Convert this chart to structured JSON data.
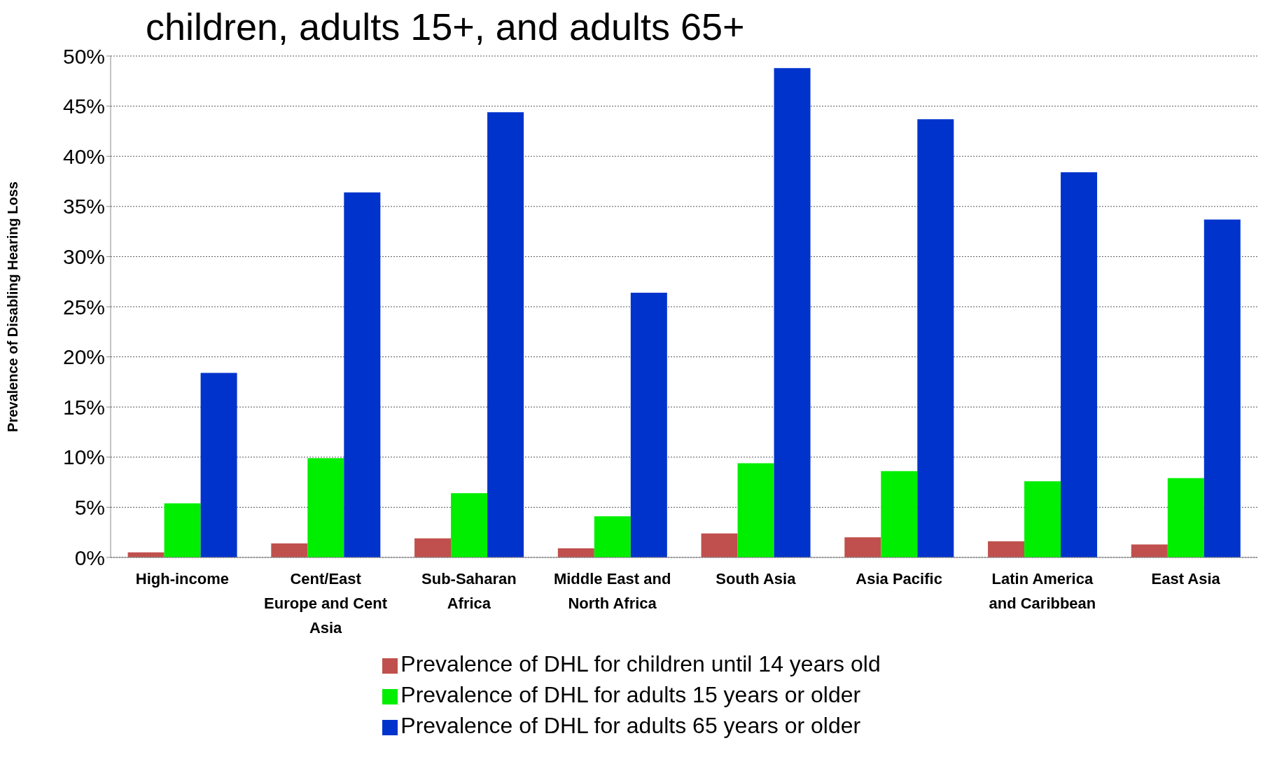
{
  "chart_data": {
    "type": "bar",
    "title": "children, adults 15+, and adults 65+",
    "ylabel": "Prevalence of Disabling Hearing Loss",
    "categories": [
      "High-income",
      "Cent/East Europe and Cent Asia",
      "Sub-Saharan Africa",
      "Middle East and North Africa",
      "South Asia",
      "Asia Pacific",
      "Latin America and Caribbean",
      "East Asia"
    ],
    "series": [
      {
        "name": "Prevalence of DHL for children until 14 years old",
        "color": "#c0504d",
        "values": [
          0.5,
          1.4,
          1.9,
          0.9,
          2.4,
          2.0,
          1.6,
          1.3
        ]
      },
      {
        "name": "Prevalence of DHL for adults 15 years or older",
        "color": "#00ee00",
        "values": [
          5.4,
          9.9,
          6.4,
          4.1,
          9.4,
          8.6,
          7.6,
          7.9
        ]
      },
      {
        "name": "Prevalence of DHL for adults 65 years or older",
        "color": "#0033cc",
        "values": [
          18.4,
          36.4,
          44.4,
          26.4,
          48.8,
          43.7,
          38.4,
          33.7
        ]
      }
    ],
    "ylim": [
      0,
      50
    ],
    "yticks": [
      {
        "value": 0,
        "label": "0%"
      },
      {
        "value": 5,
        "label": "5%"
      },
      {
        "value": 10,
        "label": "10%"
      },
      {
        "value": 15,
        "label": "15%"
      },
      {
        "value": 20,
        "label": "20%"
      },
      {
        "value": 25,
        "label": "25%"
      },
      {
        "value": 30,
        "label": "30%"
      },
      {
        "value": 35,
        "label": "35%"
      },
      {
        "value": 40,
        "label": "40%"
      },
      {
        "value": 45,
        "label": "45%"
      },
      {
        "value": 50,
        "label": "50%"
      }
    ],
    "grid": "y",
    "legend": "bottom"
  }
}
